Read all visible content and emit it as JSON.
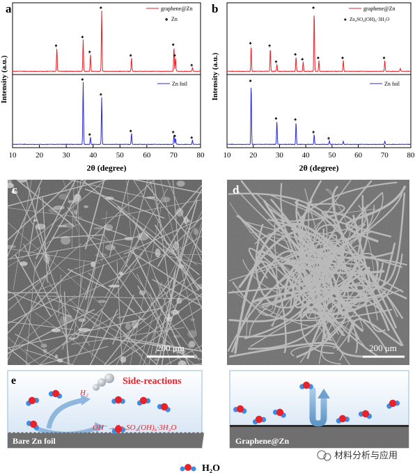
{
  "figure": {
    "panel_a": {
      "letter": "a",
      "legend": [
        "graphene@Zn",
        "Zn"
      ],
      "ylabel": "Intensity (a.u.)",
      "xlabel": "2θ (degree)",
      "xticks": [
        "10",
        "20",
        "30",
        "40",
        "50",
        "60",
        "70",
        "80"
      ],
      "lower_legend": "Zn foil"
    },
    "panel_b": {
      "letter": "b",
      "legend": [
        "graphene@Zn",
        "Zn₄SO₄(OH)₆·3H₂O"
      ],
      "ylabel": "Intensity (a.u.)",
      "xlabel": "2θ (degree)",
      "xticks": [
        "10",
        "20",
        "30",
        "40",
        "50",
        "60",
        "70",
        "80"
      ],
      "lower_legend": "Zn foil"
    },
    "panel_c": {
      "letter": "c",
      "scalebar": "200 μm"
    },
    "panel_d": {
      "letter": "d",
      "scalebar": "200 μm"
    },
    "panel_e": {
      "letter": "e",
      "side_reactions": "Side-reactions",
      "h2": "H₂",
      "reaction": "OH⁻→Zn₄SO₄(OH)₆·3H₂O",
      "bare_label": "Bare Zn foil",
      "graphene_label": "Graphene@Zn"
    },
    "legend_h2o": "H₂O",
    "watermark": "材料分析与应用",
    "colors": {
      "red": "#e8222a",
      "blue": "#2b2bd6",
      "accent": "#e8222a"
    }
  },
  "chart_data": [
    {
      "type": "line",
      "panel": "a",
      "xlabel": "2θ (degree)",
      "ylabel": "Intensity (a.u.)",
      "xlim": [
        10,
        80
      ],
      "series": [
        {
          "name": "graphene@Zn",
          "color": "#e8222a",
          "peaks": [
            [
              26.5,
              0.38
            ],
            [
              36.3,
              0.52
            ],
            [
              39.0,
              0.28
            ],
            [
              43.2,
              1.0
            ],
            [
              54.3,
              0.22
            ],
            [
              70.1,
              0.4
            ],
            [
              70.7,
              0.22
            ],
            [
              77.0,
              0.06
            ]
          ]
        },
        {
          "name": "Zn foil",
          "color": "#2b2bd6",
          "peaks": [
            [
              36.3,
              1.0
            ],
            [
              39.0,
              0.12
            ],
            [
              43.2,
              0.76
            ],
            [
              54.3,
              0.18
            ],
            [
              70.1,
              0.16
            ],
            [
              70.7,
              0.1
            ],
            [
              77.0,
              0.07
            ]
          ]
        }
      ],
      "markers_legend": "Zn"
    },
    {
      "type": "line",
      "panel": "b",
      "xlabel": "2θ (degree)",
      "ylabel": "Intensity (a.u.)",
      "xlim": [
        10,
        80
      ],
      "series": [
        {
          "name": "graphene@Zn",
          "color": "#e8222a",
          "peaks": [
            [
              19.2,
              0.42
            ],
            [
              26.5,
              0.38
            ],
            [
              29.0,
              0.12
            ],
            [
              36.3,
              0.24
            ],
            [
              39.0,
              0.16
            ],
            [
              43.2,
              1.0
            ],
            [
              45.0,
              0.18
            ],
            [
              54.3,
              0.18
            ],
            [
              70.1,
              0.18
            ],
            [
              76.0,
              0.05
            ]
          ]
        },
        {
          "name": "Zn foil",
          "color": "#2b2bd6",
          "peaks": [
            [
              19.2,
              0.98
            ],
            [
              29.0,
              0.38
            ],
            [
              36.3,
              0.36
            ],
            [
              43.2,
              0.16
            ],
            [
              49.0,
              0.06
            ],
            [
              54.3,
              0.05
            ],
            [
              70.1,
              0.05
            ]
          ]
        }
      ],
      "markers_legend": "Zn₄SO₄(OH)₆·3H₂O"
    }
  ]
}
